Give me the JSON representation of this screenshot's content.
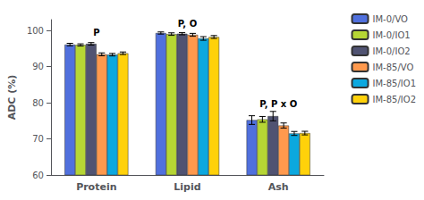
{
  "chart_data": {
    "type": "bar",
    "categories": [
      "Protein",
      "Lipid",
      "Ash"
    ],
    "series": [
      {
        "name": "IM-0/VO",
        "values": [
          96.1,
          99.3,
          75.2
        ],
        "errors": [
          0.35,
          0.3,
          1.2
        ]
      },
      {
        "name": "IM-0/IO1",
        "values": [
          96.0,
          99.0,
          75.4
        ],
        "errors": [
          0.3,
          0.35,
          0.8
        ]
      },
      {
        "name": "IM-0/IO2",
        "values": [
          96.3,
          99.1,
          76.3
        ],
        "errors": [
          0.35,
          0.3,
          1.3
        ]
      },
      {
        "name": "IM-85/VO",
        "values": [
          93.4,
          98.8,
          73.7
        ],
        "errors": [
          0.4,
          0.4,
          0.7
        ]
      },
      {
        "name": "IM-85/IO1",
        "values": [
          93.3,
          97.8,
          71.5
        ],
        "errors": [
          0.35,
          0.5,
          0.55
        ]
      },
      {
        "name": "IM-85/IO2",
        "values": [
          93.7,
          98.2,
          71.6
        ],
        "errors": [
          0.35,
          0.4,
          0.5
        ]
      }
    ],
    "annotations": [
      {
        "text": "P",
        "x": "Protein",
        "y": 98.2
      },
      {
        "text": "P, O",
        "x": "Lipid",
        "y": 100.6
      },
      {
        "text": "P, P x O",
        "x": "Ash",
        "y": 78.5
      }
    ],
    "ylabel": "ADC (%)",
    "ylim": [
      60,
      103
    ],
    "yticks": [
      60,
      70,
      80,
      90,
      100
    ],
    "grid": false,
    "legend": "upper right"
  }
}
